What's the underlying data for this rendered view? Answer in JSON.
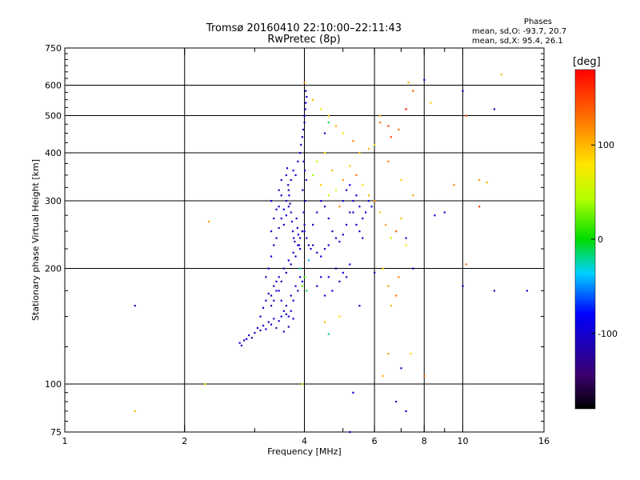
{
  "title": "Tromsø 20160410 22:10:00–22:11:43",
  "subtitle": "RwPretec (8p)",
  "phase_summary": {
    "heading": "Phases",
    "line_o": "mean, sd,O: -93.7, 20.7",
    "line_x": "mean, sd,X:  95.4, 26.1"
  },
  "colorbar": {
    "unit": "[deg]",
    "ticks": [
      100,
      0,
      -100
    ],
    "range": [
      -180,
      180
    ]
  },
  "chart_data": {
    "type": "scatter",
    "xlabel": "Frequency [MHz]",
    "ylabel": "Stationary phase Virtual Height [km]",
    "xscale": "log",
    "yscale": "log",
    "xlim": [
      1,
      16
    ],
    "ylim": [
      75,
      750
    ],
    "xticks": [
      1,
      2,
      4,
      6,
      8,
      10,
      16
    ],
    "xminor": [
      3,
      5,
      7,
      9
    ],
    "yticks": [
      75,
      100,
      200,
      300,
      400,
      500,
      600,
      750
    ],
    "grid": true,
    "color_by": "phase",
    "points": [
      [
        2.75,
        128,
        -100
      ],
      [
        2.78,
        126,
        -95
      ],
      [
        2.82,
        130,
        -110
      ],
      [
        2.86,
        131,
        -90
      ],
      [
        2.9,
        134,
        -105
      ],
      [
        2.95,
        132,
        -120
      ],
      [
        3.0,
        136,
        -100
      ],
      [
        3.05,
        140,
        -95
      ],
      [
        3.1,
        138,
        -110
      ],
      [
        3.15,
        142,
        -100
      ],
      [
        3.2,
        139,
        -85
      ],
      [
        3.25,
        145,
        -115
      ],
      [
        3.3,
        143,
        -100
      ],
      [
        3.35,
        148,
        -95
      ],
      [
        3.4,
        140,
        -130
      ],
      [
        3.45,
        146,
        -105
      ],
      [
        3.5,
        150,
        -100
      ],
      [
        3.55,
        137,
        -115
      ],
      [
        3.6,
        152,
        -90
      ],
      [
        3.65,
        141,
        -110
      ],
      [
        3.1,
        150,
        -100
      ],
      [
        3.15,
        158,
        -105
      ],
      [
        3.2,
        165,
        -95
      ],
      [
        3.25,
        172,
        -110
      ],
      [
        3.3,
        160,
        -100
      ],
      [
        3.35,
        180,
        -120
      ],
      [
        3.4,
        175,
        -100
      ],
      [
        3.45,
        190,
        -95
      ],
      [
        3.5,
        185,
        -105
      ],
      [
        3.55,
        200,
        -110
      ],
      [
        3.6,
        195,
        -100
      ],
      [
        3.65,
        210,
        -90
      ],
      [
        3.7,
        205,
        -115
      ],
      [
        3.75,
        220,
        -100
      ],
      [
        3.8,
        215,
        -105
      ],
      [
        3.85,
        230,
        -95
      ],
      [
        3.9,
        240,
        -110
      ],
      [
        3.95,
        250,
        -100
      ],
      [
        4.0,
        260,
        -105
      ],
      [
        3.7,
        170,
        -110
      ],
      [
        3.75,
        165,
        -100
      ],
      [
        3.8,
        180,
        -95
      ],
      [
        3.85,
        175,
        -120
      ],
      [
        3.9,
        190,
        -100
      ],
      [
        3.95,
        185,
        -105
      ],
      [
        3.4,
        240,
        -100
      ],
      [
        3.45,
        255,
        -110
      ],
      [
        3.5,
        270,
        -95
      ],
      [
        3.55,
        285,
        -100
      ],
      [
        3.6,
        300,
        -105
      ],
      [
        3.65,
        320,
        -110
      ],
      [
        3.7,
        340,
        -100
      ],
      [
        3.75,
        360,
        -95
      ],
      [
        3.8,
        350,
        -105
      ],
      [
        3.85,
        380,
        -110
      ],
      [
        3.45,
        290,
        -100
      ],
      [
        3.5,
        310,
        -115
      ],
      [
        3.55,
        260,
        -100
      ],
      [
        3.6,
        275,
        -90
      ],
      [
        3.65,
        290,
        -105
      ],
      [
        3.9,
        400,
        -100
      ],
      [
        3.92,
        420,
        -110
      ],
      [
        3.95,
        440,
        -95
      ],
      [
        3.97,
        460,
        -100
      ],
      [
        4.0,
        480,
        -105
      ],
      [
        4.0,
        500,
        -100
      ],
      [
        4.02,
        520,
        -110
      ],
      [
        4.03,
        540,
        -95
      ],
      [
        4.05,
        560,
        -100
      ],
      [
        4.03,
        580,
        -105
      ],
      [
        3.98,
        380,
        -100
      ],
      [
        4.01,
        360,
        -110
      ],
      [
        4.04,
        340,
        -95
      ],
      [
        3.96,
        320,
        -100
      ],
      [
        4.02,
        300,
        -105
      ],
      [
        3.98,
        280,
        -110
      ],
      [
        4.0,
        250,
        -100
      ],
      [
        4.05,
        240,
        -95
      ],
      [
        4.1,
        230,
        -105
      ],
      [
        4.15,
        225,
        -100
      ],
      [
        4.2,
        230,
        -110
      ],
      [
        4.3,
        220,
        -100
      ],
      [
        4.4,
        215,
        -95
      ],
      [
        4.5,
        225,
        -105
      ],
      [
        4.6,
        230,
        -100
      ],
      [
        4.2,
        260,
        -110
      ],
      [
        4.3,
        280,
        -100
      ],
      [
        4.4,
        300,
        -95
      ],
      [
        4.5,
        290,
        -105
      ],
      [
        4.6,
        270,
        -100
      ],
      [
        4.7,
        250,
        -110
      ],
      [
        4.8,
        240,
        -100
      ],
      [
        4.9,
        235,
        -95
      ],
      [
        5.0,
        245,
        -105
      ],
      [
        5.1,
        260,
        -100
      ],
      [
        5.2,
        280,
        -110
      ],
      [
        5.3,
        300,
        -100
      ],
      [
        5.4,
        310,
        -95
      ],
      [
        5.5,
        290,
        -105
      ],
      [
        5.6,
        270,
        -100
      ],
      [
        5.0,
        300,
        -100
      ],
      [
        5.1,
        320,
        -110
      ],
      [
        5.2,
        330,
        -95
      ],
      [
        5.3,
        280,
        -100
      ],
      [
        5.4,
        260,
        -105
      ],
      [
        5.5,
        250,
        -110
      ],
      [
        5.6,
        240,
        -100
      ],
      [
        5.7,
        280,
        -95
      ],
      [
        5.8,
        300,
        -105
      ],
      [
        5.9,
        290,
        -100
      ],
      [
        4.6,
        190,
        -100
      ],
      [
        4.8,
        200,
        -110
      ],
      [
        5.0,
        195,
        -95
      ],
      [
        5.2,
        205,
        -100
      ],
      [
        4.9,
        185,
        -105
      ],
      [
        5.1,
        190,
        -110
      ],
      [
        4.5,
        170,
        -100
      ],
      [
        4.7,
        175,
        -95
      ],
      [
        4.3,
        180,
        -105
      ],
      [
        4.4,
        190,
        -100
      ],
      [
        4.2,
        350,
        40
      ],
      [
        4.3,
        380,
        60
      ],
      [
        4.4,
        330,
        90
      ],
      [
        4.5,
        400,
        80
      ],
      [
        4.6,
        310,
        50
      ],
      [
        4.7,
        360,
        100
      ],
      [
        4.8,
        320,
        70
      ],
      [
        4.9,
        290,
        120
      ],
      [
        5.0,
        340,
        110
      ],
      [
        5.2,
        370,
        90
      ],
      [
        5.4,
        350,
        130
      ],
      [
        5.6,
        330,
        80
      ],
      [
        5.8,
        310,
        100
      ],
      [
        6.0,
        300,
        120
      ],
      [
        6.2,
        280,
        90
      ],
      [
        6.4,
        260,
        110
      ],
      [
        6.6,
        240,
        60
      ],
      [
        6.8,
        250,
        140
      ],
      [
        7.0,
        270,
        100
      ],
      [
        7.2,
        230,
        80
      ],
      [
        3.9,
        200,
        -20
      ],
      [
        4.0,
        190,
        10
      ],
      [
        4.1,
        210,
        -40
      ],
      [
        3.95,
        180,
        20
      ],
      [
        4.05,
        175,
        -10
      ],
      [
        5.5,
        400,
        100
      ],
      [
        6.0,
        420,
        80
      ],
      [
        6.5,
        380,
        130
      ],
      [
        7.0,
        340,
        90
      ],
      [
        7.5,
        310,
        110
      ],
      [
        4.6,
        500,
        90
      ],
      [
        5.0,
        450,
        80
      ],
      [
        4.8,
        470,
        100
      ],
      [
        5.3,
        430,
        120
      ],
      [
        5.8,
        410,
        100
      ],
      [
        6.3,
        200,
        90
      ],
      [
        6.5,
        180,
        110
      ],
      [
        6.8,
        170,
        130
      ],
      [
        6.6,
        160,
        100
      ],
      [
        6.9,
        190,
        120
      ],
      [
        6.2,
        480,
        130
      ],
      [
        6.6,
        440,
        150
      ],
      [
        7.2,
        520,
        170
      ],
      [
        7.5,
        580,
        140
      ],
      [
        7.3,
        610,
        100
      ],
      [
        8.0,
        620,
        -100
      ],
      [
        10.0,
        580,
        -110
      ],
      [
        10.2,
        500,
        150
      ],
      [
        8.3,
        540,
        90
      ],
      [
        12.0,
        520,
        -100
      ],
      [
        12.5,
        640,
        100
      ],
      [
        11.0,
        340,
        110
      ],
      [
        11.5,
        335,
        100
      ],
      [
        9.5,
        330,
        120
      ],
      [
        11.0,
        290,
        150
      ],
      [
        10.0,
        180,
        -105
      ],
      [
        12.0,
        175,
        -110
      ],
      [
        14.5,
        175,
        -100
      ],
      [
        10.2,
        205,
        130
      ],
      [
        9.0,
        280,
        -100
      ],
      [
        8.5,
        275,
        -95
      ],
      [
        7.2,
        240,
        -100
      ],
      [
        7.5,
        200,
        -110
      ],
      [
        7.4,
        120,
        90
      ],
      [
        7.2,
        85,
        -100
      ],
      [
        6.8,
        90,
        -110
      ],
      [
        5.3,
        95,
        -100
      ],
      [
        7.0,
        110,
        -100
      ],
      [
        6.3,
        105,
        100
      ],
      [
        6.5,
        120,
        110
      ],
      [
        5.2,
        75,
        -90
      ],
      [
        8.0,
        105,
        130
      ],
      [
        6.2,
        500,
        100
      ],
      [
        6.5,
        470,
        150
      ],
      [
        6.9,
        460,
        130
      ],
      [
        2.3,
        265,
        110
      ],
      [
        1.5,
        160,
        -100
      ],
      [
        1.5,
        85,
        100
      ],
      [
        2.25,
        100,
        80
      ],
      [
        3.95,
        100,
        60
      ],
      [
        4.5,
        145,
        100
      ],
      [
        4.6,
        135,
        -20
      ],
      [
        4.9,
        150,
        80
      ],
      [
        5.5,
        160,
        -100
      ],
      [
        6.0,
        195,
        -110
      ],
      [
        4.0,
        610,
        120
      ],
      [
        4.2,
        550,
        100
      ],
      [
        4.4,
        520,
        80
      ],
      [
        4.6,
        480,
        -10
      ],
      [
        4.5,
        450,
        -100
      ],
      [
        3.6,
        350,
        -105
      ],
      [
        3.62,
        365,
        -100
      ],
      [
        3.64,
        330,
        -110
      ],
      [
        3.66,
        310,
        -95
      ],
      [
        3.68,
        295,
        -100
      ],
      [
        3.7,
        280,
        -110
      ],
      [
        3.72,
        265,
        -100
      ],
      [
        3.74,
        250,
        -105
      ],
      [
        3.76,
        240,
        -95
      ],
      [
        3.78,
        235,
        -100
      ],
      [
        3.82,
        270,
        -110
      ],
      [
        3.84,
        255,
        -100
      ],
      [
        3.86,
        245,
        -95
      ],
      [
        3.88,
        230,
        -105
      ],
      [
        3.9,
        225,
        -100
      ],
      [
        3.3,
        170,
        -110
      ],
      [
        3.35,
        165,
        -100
      ],
      [
        3.4,
        185,
        -95
      ],
      [
        3.45,
        175,
        -105
      ],
      [
        3.5,
        165,
        -100
      ],
      [
        3.55,
        155,
        -110
      ],
      [
        3.6,
        160,
        -100
      ],
      [
        3.65,
        150,
        -95
      ],
      [
        3.7,
        155,
        -105
      ],
      [
        3.75,
        148,
        -100
      ],
      [
        3.2,
        190,
        -110
      ],
      [
        3.25,
        200,
        -100
      ],
      [
        3.3,
        215,
        -95
      ],
      [
        3.35,
        230,
        -105
      ],
      [
        3.3,
        250,
        -100
      ],
      [
        3.35,
        270,
        -110
      ],
      [
        3.4,
        285,
        -100
      ],
      [
        3.3,
        300,
        -95
      ],
      [
        3.45,
        320,
        -105
      ],
      [
        3.5,
        340,
        -100
      ]
    ]
  }
}
